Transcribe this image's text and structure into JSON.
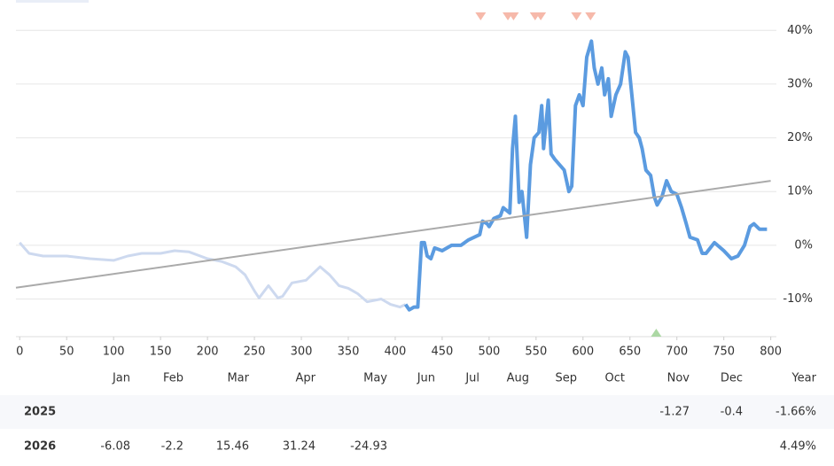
{
  "chart_data": {
    "type": "line",
    "xlim": [
      -4,
      806
    ],
    "xticks": [
      0,
      50,
      100,
      150,
      200,
      250,
      300,
      350,
      400,
      450,
      500,
      550,
      600,
      650,
      700,
      750,
      800
    ],
    "ylim": [
      -17,
      44
    ],
    "yticks": [
      {
        "value": -10,
        "label": "-10%"
      },
      {
        "value": 0,
        "label": "0%"
      },
      {
        "value": 10,
        "label": "10%"
      },
      {
        "value": 20,
        "label": "20%"
      },
      {
        "value": 30,
        "label": "30%"
      },
      {
        "value": 40,
        "label": "40%"
      }
    ],
    "grid": true,
    "series": [
      {
        "color": "#cdd9ef",
        "width": 3,
        "x": [
          0,
          10,
          25,
          50,
          75,
          100,
          115,
          130,
          150,
          165,
          180,
          200,
          215,
          230,
          240,
          250,
          255,
          265,
          275,
          280,
          290,
          305,
          320,
          330,
          340,
          350,
          355,
          360,
          370,
          385,
          395,
          405,
          411
        ],
        "values": [
          0.5,
          -1.5,
          -2,
          -2,
          -2.5,
          -2.8,
          -2,
          -1.5,
          -1.5,
          -1,
          -1.2,
          -2.5,
          -3,
          -4,
          -5.5,
          -8.5,
          -9.8,
          -7.5,
          -9.8,
          -9.5,
          -7,
          -6.5,
          -4,
          -5.5,
          -7.5,
          -8,
          -8.5,
          -9,
          -10.5,
          -10,
          -11,
          -11.5,
          -11
        ]
      },
      {
        "color": "#5b9be0",
        "width": 4,
        "x": [
          411,
          415,
          420,
          424,
          428,
          431,
          434,
          438,
          442,
          450,
          460,
          470,
          478,
          490,
          493,
          498,
          500,
          505,
          512,
          515,
          522,
          525,
          528,
          532,
          535,
          540,
          544,
          548,
          553,
          556,
          558,
          563,
          566,
          570,
          575,
          580,
          585,
          588,
          592,
          596,
          600,
          604,
          609,
          612,
          616,
          620,
          623,
          627,
          630,
          635,
          640,
          645,
          648,
          652,
          656,
          660,
          663,
          667,
          672,
          676,
          679,
          684,
          689,
          694,
          700,
          705,
          710,
          714,
          722,
          727,
          731,
          740,
          750,
          758,
          765,
          772,
          778,
          782,
          788,
          796
        ],
        "values": [
          -11,
          -12,
          -11.5,
          -11.5,
          0.5,
          0.5,
          -2,
          -2.5,
          -0.5,
          -1,
          0,
          0,
          1,
          2,
          4.5,
          4,
          3.5,
          5,
          5.5,
          7,
          6,
          18,
          24,
          8,
          10,
          1.5,
          15,
          20,
          21,
          26,
          18,
          27,
          17,
          16,
          15,
          14,
          10,
          11,
          26,
          28,
          26,
          35,
          38,
          33,
          30,
          33,
          28,
          31,
          24,
          28,
          30,
          36,
          35,
          28,
          21,
          20,
          18,
          14,
          13,
          9,
          7.5,
          9,
          12,
          10,
          9.5,
          7,
          4,
          1.5,
          1,
          -1.5,
          -1.5,
          0.5,
          -1,
          -2.5,
          -2,
          0,
          3.5,
          4,
          3,
          3
        ]
      },
      {
        "color": "#aaaaaa",
        "width": 2,
        "x": [
          -4,
          800
        ],
        "values": [
          -7.9,
          12
        ]
      }
    ],
    "signals": [
      {
        "x": 491,
        "direction": "down",
        "color": "#f6b9aa"
      },
      {
        "x": 520,
        "direction": "down",
        "color": "#f6b9aa"
      },
      {
        "x": 526,
        "direction": "down",
        "color": "#f6b9aa"
      },
      {
        "x": 549,
        "direction": "down",
        "color": "#f6b9aa"
      },
      {
        "x": 555,
        "direction": "down",
        "color": "#f6b9aa"
      },
      {
        "x": 593,
        "direction": "down",
        "color": "#f6b9aa"
      },
      {
        "x": 608,
        "direction": "down",
        "color": "#f6b9aa"
      },
      {
        "x": 678,
        "direction": "up",
        "color": "#acd8a4"
      }
    ]
  },
  "table": {
    "columns": [
      "Jan",
      "Feb",
      "Mar",
      "Apr",
      "May",
      "Jun",
      "Jul",
      "Aug",
      "Sep",
      "Oct",
      "Nov",
      "Dec",
      "Year"
    ],
    "rows": [
      {
        "label": "2025",
        "cells": [
          null,
          null,
          null,
          null,
          null,
          null,
          null,
          null,
          null,
          null,
          "-1.27",
          "-0.4",
          "-1.66%"
        ]
      },
      {
        "label": "2026",
        "cells": [
          "-6.08",
          "-2.2",
          "15.46",
          "31.24",
          "-24.93",
          null,
          null,
          null,
          null,
          null,
          null,
          null,
          "4.49%"
        ]
      }
    ]
  }
}
